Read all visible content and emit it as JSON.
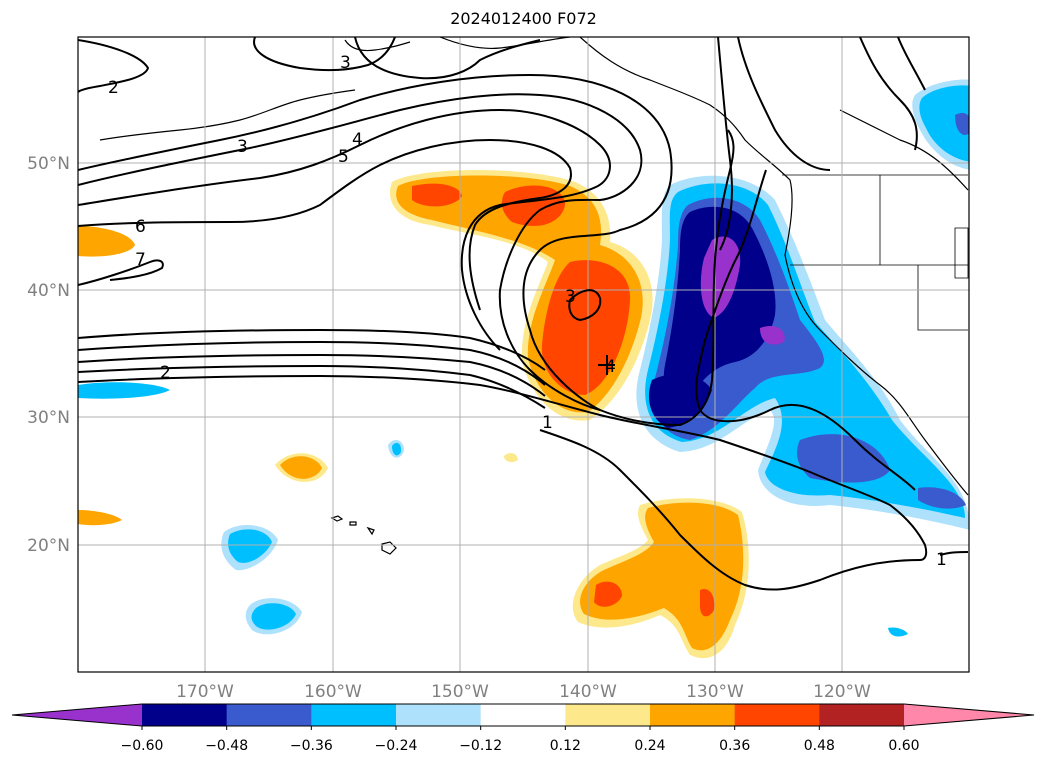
{
  "title": "2024012400 F072",
  "map": {
    "lon_ticks": [
      "170°W",
      "160°W",
      "150°W",
      "140°W",
      "130°W",
      "120°W"
    ],
    "lat_ticks": [
      "50°N",
      "40°N",
      "30°N",
      "20°N"
    ],
    "contour_labels": [
      "2",
      "3",
      "3",
      "4",
      "5",
      "6",
      "7",
      "2",
      "1",
      "3",
      "4",
      "1"
    ]
  },
  "colorbar": {
    "colors": [
      "#9932cc",
      "#00008b",
      "#3a5bcd",
      "#00bfff",
      "#aee1fb",
      "#ffffff",
      "#fde98b",
      "#ffa500",
      "#ff4500",
      "#b22222",
      "#ff88aa"
    ],
    "tick_labels": [
      "−0.60",
      "−0.48",
      "−0.36",
      "−0.24",
      "−0.12",
      "0.12",
      "0.24",
      "0.36",
      "0.48",
      "0.60"
    ]
  }
}
